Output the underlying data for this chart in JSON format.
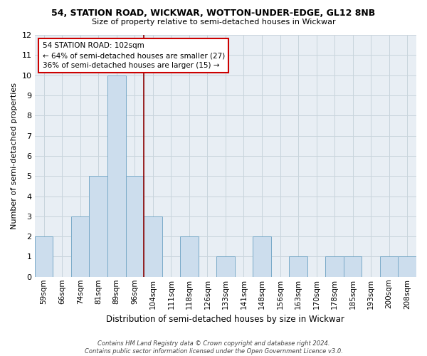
{
  "title": "54, STATION ROAD, WICKWAR, WOTTON-UNDER-EDGE, GL12 8NB",
  "subtitle": "Size of property relative to semi-detached houses in Wickwar",
  "xlabel": "Distribution of semi-detached houses by size in Wickwar",
  "ylabel": "Number of semi-detached properties",
  "categories": [
    "59sqm",
    "66sqm",
    "74sqm",
    "81sqm",
    "89sqm",
    "96sqm",
    "104sqm",
    "111sqm",
    "118sqm",
    "126sqm",
    "133sqm",
    "141sqm",
    "148sqm",
    "156sqm",
    "163sqm",
    "170sqm",
    "178sqm",
    "185sqm",
    "193sqm",
    "200sqm",
    "208sqm"
  ],
  "values": [
    2,
    0,
    3,
    5,
    10,
    5,
    3,
    0,
    2,
    0,
    1,
    0,
    2,
    0,
    1,
    0,
    1,
    1,
    0,
    1,
    1
  ],
  "bar_color": "#ccdded",
  "bar_edge_color": "#7aaac8",
  "property_line_color": "#8b0000",
  "annotation_line1": "54 STATION ROAD: 102sqm",
  "annotation_line2": "← 64% of semi-detached houses are smaller (27)",
  "annotation_line3": "36% of semi-detached houses are larger (15) →",
  "annotation_box_color": "#ffffff",
  "annotation_box_edge_color": "#cc0000",
  "ylim": [
    0,
    12
  ],
  "yticks": [
    0,
    1,
    2,
    3,
    4,
    5,
    6,
    7,
    8,
    9,
    10,
    11,
    12
  ],
  "footer_text": "Contains HM Land Registry data © Crown copyright and database right 2024.\nContains public sector information licensed under the Open Government Licence v3.0.",
  "bg_color": "#ffffff",
  "plot_bg_color": "#e8eef4",
  "grid_color": "#c8d4dc"
}
